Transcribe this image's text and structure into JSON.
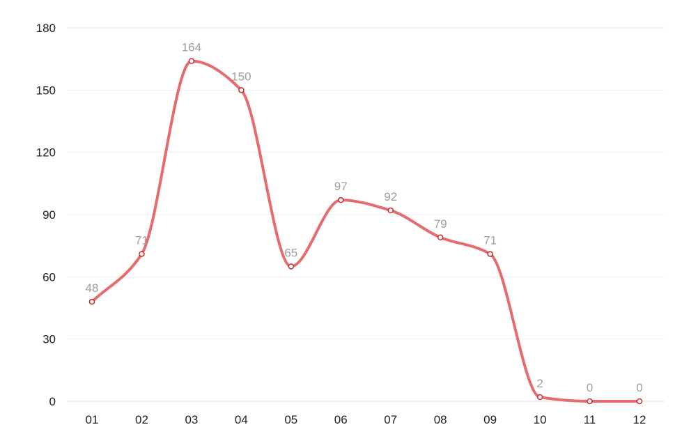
{
  "chart_data": {
    "type": "line",
    "categories": [
      "01",
      "02",
      "03",
      "04",
      "05",
      "06",
      "07",
      "08",
      "09",
      "10",
      "11",
      "12"
    ],
    "values": [
      48,
      71,
      164,
      150,
      65,
      97,
      92,
      79,
      71,
      2,
      0,
      0
    ],
    "ylim": [
      0,
      180
    ],
    "yticks": [
      0,
      30,
      60,
      90,
      120,
      150,
      180
    ],
    "grid": true,
    "line_color": "#e56b6f",
    "point_fill": "#ffffff",
    "point_stroke": "#c8282f",
    "label_color": "#9d9d9d"
  }
}
